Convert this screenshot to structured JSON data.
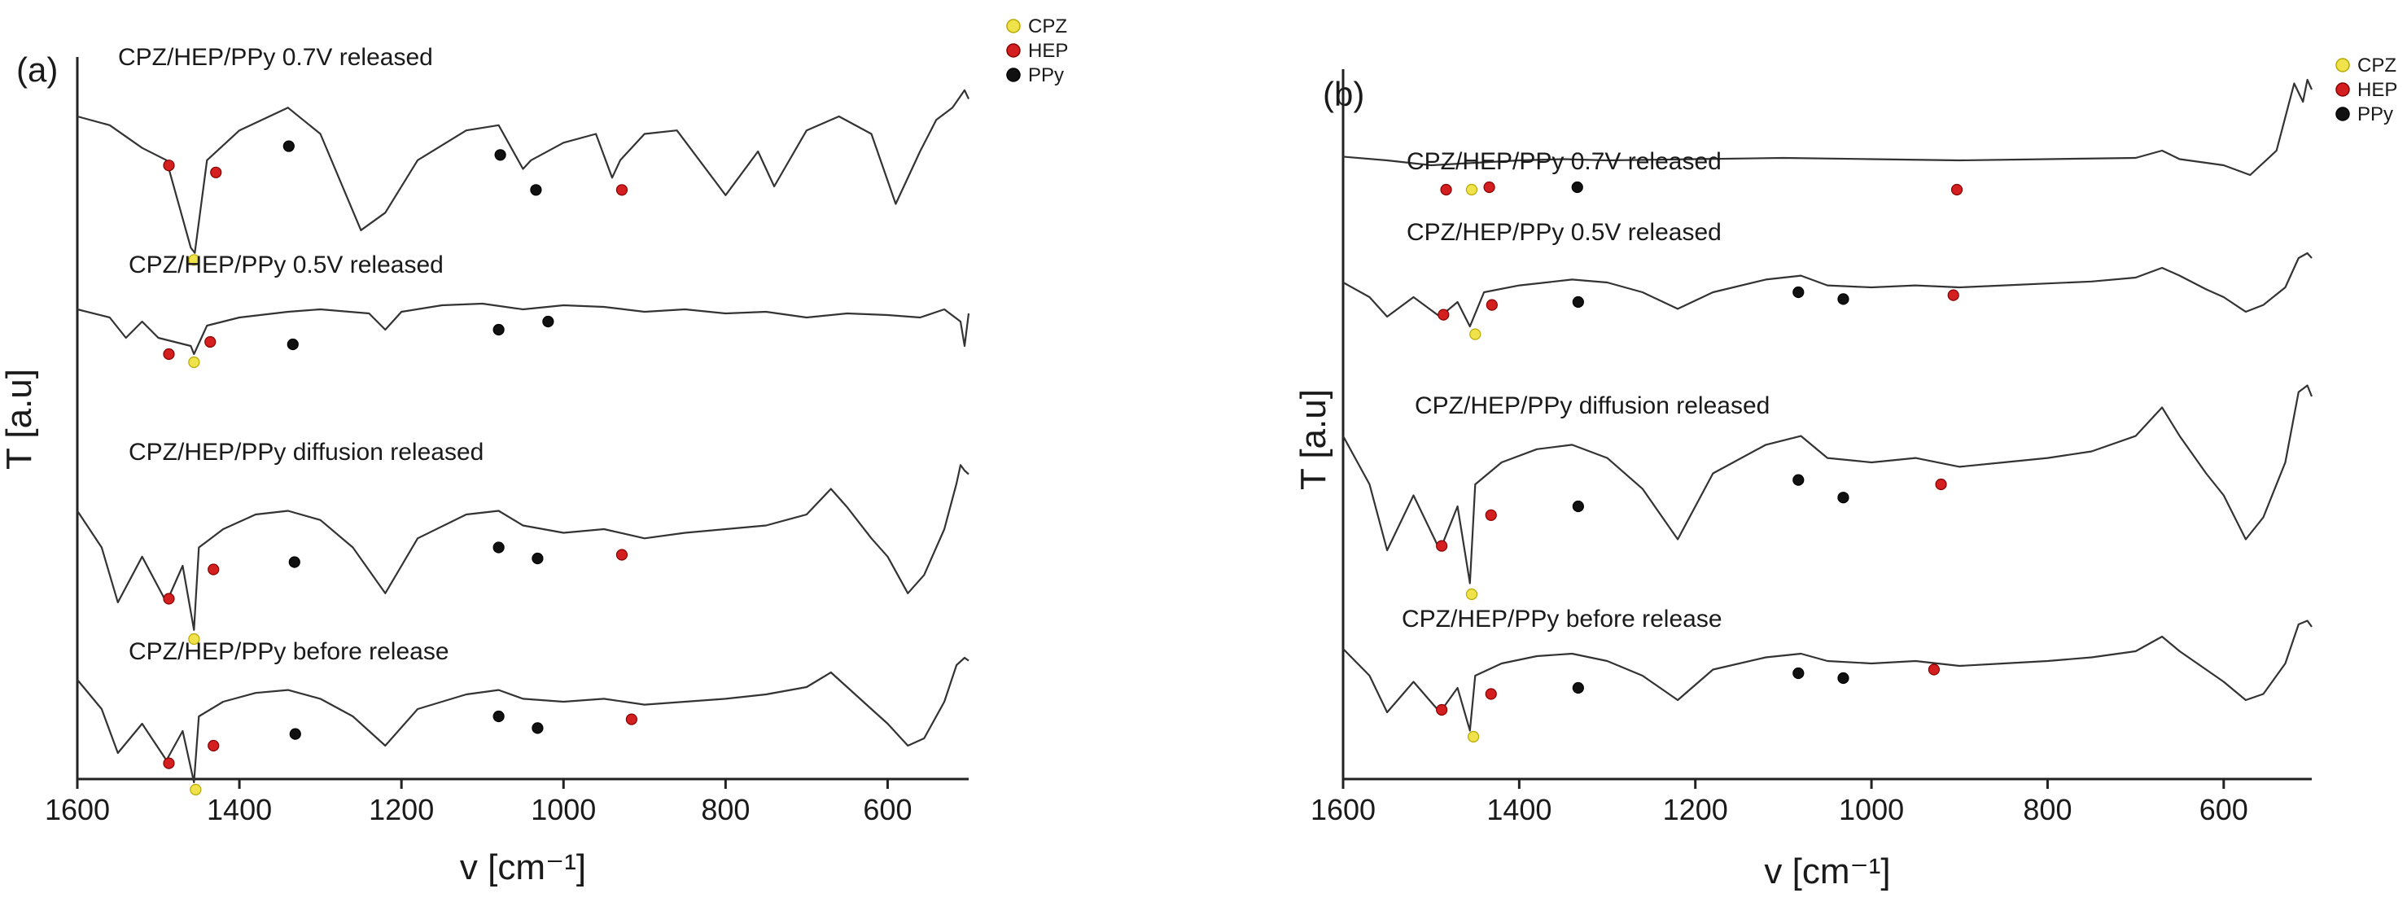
{
  "chart_data": [
    {
      "panel_label": "(a)",
      "type": "line",
      "xlabel": "v [cm⁻¹]",
      "ylabel": "T [a.u]",
      "xlim": [
        1600,
        500
      ],
      "xticks": [
        1600,
        1400,
        1200,
        1000,
        800,
        600
      ],
      "legend": [
        {
          "name": "CPZ",
          "color": "#f0e24a"
        },
        {
          "name": "HEP",
          "color": "#d31f1f"
        },
        {
          "name": "PPy",
          "color": "#111111"
        }
      ],
      "series": [
        {
          "name": "CPZ/HEP/PPy 0.7V released",
          "x": [
            1600,
            1560,
            1520,
            1490,
            1460,
            1455,
            1440,
            1400,
            1340,
            1300,
            1250,
            1220,
            1180,
            1120,
            1080,
            1050,
            1040,
            1000,
            960,
            940,
            930,
            900,
            860,
            800,
            760,
            740,
            700,
            660,
            620,
            590,
            560,
            540,
            520,
            505,
            500
          ],
          "y": [
            0.8,
            0.75,
            0.62,
            0.55,
            0.05,
            0.02,
            0.55,
            0.72,
            0.85,
            0.7,
            0.15,
            0.25,
            0.55,
            0.72,
            0.75,
            0.5,
            0.55,
            0.65,
            0.7,
            0.45,
            0.55,
            0.7,
            0.72,
            0.35,
            0.6,
            0.4,
            0.72,
            0.8,
            0.7,
            0.3,
            0.6,
            0.78,
            0.85,
            0.95,
            0.9
          ],
          "markers": [
            {
              "cls": "HEP",
              "x": 1487,
              "y": 0.52
            },
            {
              "cls": "HEP",
              "x": 1429,
              "y": 0.48
            },
            {
              "cls": "PPy",
              "x": 1339,
              "y": 0.63
            },
            {
              "cls": "PPy",
              "x": 1078,
              "y": 0.58
            },
            {
              "cls": "PPy",
              "x": 1034,
              "y": 0.38
            },
            {
              "cls": "HEP",
              "x": 928,
              "y": 0.38
            },
            {
              "cls": "CPZ",
              "x": 1456,
              "y": -0.02
            }
          ]
        },
        {
          "name": "CPZ/HEP/PPy 0.5V released",
          "x": [
            1600,
            1560,
            1540,
            1520,
            1500,
            1460,
            1456,
            1440,
            1400,
            1340,
            1300,
            1240,
            1220,
            1200,
            1150,
            1100,
            1050,
            1000,
            950,
            900,
            850,
            800,
            750,
            700,
            650,
            600,
            560,
            530,
            510,
            505,
            500
          ],
          "y": [
            0.65,
            0.55,
            0.3,
            0.5,
            0.3,
            0.2,
            0.1,
            0.45,
            0.55,
            0.62,
            0.65,
            0.6,
            0.4,
            0.62,
            0.7,
            0.72,
            0.65,
            0.7,
            0.68,
            0.62,
            0.65,
            0.6,
            0.62,
            0.55,
            0.6,
            0.58,
            0.55,
            0.65,
            0.5,
            0.2,
            0.6
          ],
          "markers": [
            {
              "cls": "HEP",
              "x": 1487,
              "y": 0.1
            },
            {
              "cls": "HEP",
              "x": 1436,
              "y": 0.25
            },
            {
              "cls": "PPy",
              "x": 1334,
              "y": 0.22
            },
            {
              "cls": "PPy",
              "x": 1080,
              "y": 0.4
            },
            {
              "cls": "PPy",
              "x": 1019,
              "y": 0.5
            },
            {
              "cls": "CPZ",
              "x": 1456,
              "y": 0.0
            }
          ]
        },
        {
          "name": "CPZ/HEP/PPy diffusion released",
          "x": [
            1600,
            1570,
            1550,
            1520,
            1490,
            1470,
            1456,
            1450,
            1420,
            1380,
            1340,
            1300,
            1260,
            1220,
            1180,
            1120,
            1080,
            1050,
            1000,
            950,
            900,
            850,
            800,
            750,
            700,
            670,
            650,
            620,
            600,
            575,
            555,
            530,
            515,
            510,
            505,
            500
          ],
          "y": [
            0.7,
            0.5,
            0.2,
            0.45,
            0.2,
            0.4,
            0.05,
            0.5,
            0.6,
            0.68,
            0.7,
            0.65,
            0.5,
            0.25,
            0.55,
            0.68,
            0.7,
            0.62,
            0.58,
            0.6,
            0.55,
            0.58,
            0.6,
            0.62,
            0.68,
            0.82,
            0.72,
            0.55,
            0.45,
            0.25,
            0.35,
            0.6,
            0.85,
            0.95,
            0.92,
            0.9
          ],
          "markers": [
            {
              "cls": "HEP",
              "x": 1487,
              "y": 0.22
            },
            {
              "cls": "HEP",
              "x": 1432,
              "y": 0.38
            },
            {
              "cls": "PPy",
              "x": 1332,
              "y": 0.42
            },
            {
              "cls": "PPy",
              "x": 1080,
              "y": 0.5
            },
            {
              "cls": "PPy",
              "x": 1032,
              "y": 0.44
            },
            {
              "cls": "HEP",
              "x": 928,
              "y": 0.46
            },
            {
              "cls": "CPZ",
              "x": 1456,
              "y": 0.0
            }
          ]
        },
        {
          "name": "CPZ/HEP/PPy before release",
          "x": [
            1600,
            1570,
            1550,
            1520,
            1490,
            1470,
            1456,
            1450,
            1420,
            1380,
            1340,
            1300,
            1260,
            1220,
            1180,
            1120,
            1080,
            1050,
            1000,
            950,
            900,
            850,
            800,
            750,
            700,
            670,
            650,
            620,
            600,
            575,
            555,
            530,
            515,
            505,
            500
          ],
          "y": [
            0.75,
            0.55,
            0.25,
            0.45,
            0.2,
            0.4,
            0.05,
            0.5,
            0.6,
            0.66,
            0.68,
            0.62,
            0.5,
            0.3,
            0.55,
            0.65,
            0.68,
            0.62,
            0.6,
            0.62,
            0.58,
            0.6,
            0.62,
            0.65,
            0.7,
            0.8,
            0.7,
            0.55,
            0.45,
            0.3,
            0.35,
            0.6,
            0.85,
            0.9,
            0.88
          ],
          "markers": [
            {
              "cls": "HEP",
              "x": 1487,
              "y": 0.18
            },
            {
              "cls": "HEP",
              "x": 1432,
              "y": 0.3
            },
            {
              "cls": "PPy",
              "x": 1331,
              "y": 0.38
            },
            {
              "cls": "PPy",
              "x": 1080,
              "y": 0.5
            },
            {
              "cls": "PPy",
              "x": 1032,
              "y": 0.42
            },
            {
              "cls": "HEP",
              "x": 916,
              "y": 0.48
            },
            {
              "cls": "CPZ",
              "x": 1454,
              "y": 0.0
            }
          ]
        }
      ]
    },
    {
      "panel_label": "(b)",
      "type": "line",
      "xlabel": "v [cm⁻¹]",
      "ylabel": "T [a.u]",
      "xlim": [
        1600,
        500
      ],
      "xticks": [
        1600,
        1400,
        1200,
        1000,
        800,
        600
      ],
      "legend": [
        {
          "name": "CPZ",
          "color": "#f0e24a"
        },
        {
          "name": "HEP",
          "color": "#d31f1f"
        },
        {
          "name": "PPy",
          "color": "#111111"
        }
      ],
      "series": [
        {
          "name": "CPZ/HEP/PPy 0.7V released",
          "x": [
            1600,
            1550,
            1500,
            1450,
            1400,
            1350,
            1300,
            1200,
            1100,
            1000,
            900,
            800,
            700,
            670,
            650,
            600,
            570,
            540,
            520,
            510,
            505,
            500
          ],
          "y": [
            0.35,
            0.32,
            0.28,
            0.3,
            0.32,
            0.33,
            0.32,
            0.33,
            0.34,
            0.33,
            0.32,
            0.33,
            0.34,
            0.4,
            0.33,
            0.28,
            0.2,
            0.4,
            0.95,
            0.8,
            0.98,
            0.9
          ],
          "markers": [
            {
              "cls": "HEP",
              "x": 1483,
              "y": 0.08
            },
            {
              "cls": "CPZ",
              "x": 1454,
              "y": 0.08
            },
            {
              "cls": "HEP",
              "x": 1434,
              "y": 0.1
            },
            {
              "cls": "PPy",
              "x": 1334,
              "y": 0.1
            },
            {
              "cls": "HEP",
              "x": 903,
              "y": 0.08
            }
          ]
        },
        {
          "name": "CPZ/HEP/PPy 0.5V released",
          "x": [
            1600,
            1570,
            1550,
            1520,
            1490,
            1470,
            1456,
            1440,
            1400,
            1340,
            1300,
            1260,
            1220,
            1180,
            1120,
            1080,
            1050,
            1000,
            950,
            900,
            850,
            800,
            750,
            700,
            670,
            650,
            620,
            600,
            575,
            555,
            530,
            515,
            505,
            500
          ],
          "y": [
            0.65,
            0.5,
            0.3,
            0.5,
            0.3,
            0.45,
            0.2,
            0.55,
            0.62,
            0.68,
            0.65,
            0.55,
            0.38,
            0.55,
            0.68,
            0.72,
            0.62,
            0.6,
            0.62,
            0.6,
            0.62,
            0.64,
            0.66,
            0.7,
            0.8,
            0.72,
            0.58,
            0.5,
            0.35,
            0.42,
            0.6,
            0.9,
            0.95,
            0.9
          ],
          "markers": [
            {
              "cls": "HEP",
              "x": 1486,
              "y": 0.32
            },
            {
              "cls": "HEP",
              "x": 1431,
              "y": 0.42
            },
            {
              "cls": "PPy",
              "x": 1333,
              "y": 0.45
            },
            {
              "cls": "PPy",
              "x": 1083,
              "y": 0.55
            },
            {
              "cls": "PPy",
              "x": 1032,
              "y": 0.48
            },
            {
              "cls": "HEP",
              "x": 907,
              "y": 0.52
            },
            {
              "cls": "CPZ",
              "x": 1450,
              "y": 0.12
            }
          ]
        },
        {
          "name": "CPZ/HEP/PPy diffusion released",
          "x": [
            1600,
            1570,
            1550,
            1520,
            1490,
            1470,
            1456,
            1450,
            1420,
            1380,
            1340,
            1300,
            1260,
            1220,
            1180,
            1120,
            1080,
            1050,
            1000,
            950,
            900,
            850,
            800,
            750,
            700,
            670,
            650,
            620,
            600,
            575,
            555,
            530,
            515,
            505,
            500
          ],
          "y": [
            0.72,
            0.5,
            0.2,
            0.45,
            0.2,
            0.4,
            0.05,
            0.5,
            0.6,
            0.66,
            0.68,
            0.62,
            0.48,
            0.25,
            0.55,
            0.68,
            0.72,
            0.62,
            0.6,
            0.62,
            0.58,
            0.6,
            0.62,
            0.65,
            0.72,
            0.85,
            0.72,
            0.55,
            0.45,
            0.25,
            0.35,
            0.6,
            0.92,
            0.95,
            0.9
          ],
          "markers": [
            {
              "cls": "HEP",
              "x": 1488,
              "y": 0.22
            },
            {
              "cls": "HEP",
              "x": 1432,
              "y": 0.36
            },
            {
              "cls": "PPy",
              "x": 1333,
              "y": 0.4
            },
            {
              "cls": "PPy",
              "x": 1083,
              "y": 0.52
            },
            {
              "cls": "PPy",
              "x": 1032,
              "y": 0.44
            },
            {
              "cls": "HEP",
              "x": 921,
              "y": 0.5
            },
            {
              "cls": "CPZ",
              "x": 1454,
              "y": 0.0
            }
          ]
        },
        {
          "name": "CPZ/HEP/PPy before release",
          "x": [
            1600,
            1570,
            1550,
            1520,
            1490,
            1470,
            1456,
            1450,
            1420,
            1380,
            1340,
            1300,
            1260,
            1220,
            1180,
            1120,
            1080,
            1050,
            1000,
            950,
            900,
            850,
            800,
            750,
            700,
            670,
            650,
            620,
            600,
            575,
            555,
            530,
            515,
            505,
            500
          ],
          "y": [
            0.72,
            0.5,
            0.2,
            0.45,
            0.2,
            0.4,
            0.05,
            0.5,
            0.6,
            0.66,
            0.68,
            0.62,
            0.5,
            0.3,
            0.55,
            0.65,
            0.68,
            0.62,
            0.6,
            0.62,
            0.58,
            0.6,
            0.62,
            0.65,
            0.7,
            0.82,
            0.7,
            0.55,
            0.45,
            0.3,
            0.35,
            0.6,
            0.92,
            0.95,
            0.9
          ],
          "markers": [
            {
              "cls": "HEP",
              "x": 1488,
              "y": 0.22
            },
            {
              "cls": "HEP",
              "x": 1432,
              "y": 0.35
            },
            {
              "cls": "PPy",
              "x": 1333,
              "y": 0.4
            },
            {
              "cls": "PPy",
              "x": 1083,
              "y": 0.52
            },
            {
              "cls": "PPy",
              "x": 1032,
              "y": 0.48
            },
            {
              "cls": "HEP",
              "x": 929,
              "y": 0.55
            },
            {
              "cls": "CPZ",
              "x": 1452,
              "y": 0.0
            }
          ]
        }
      ]
    }
  ]
}
